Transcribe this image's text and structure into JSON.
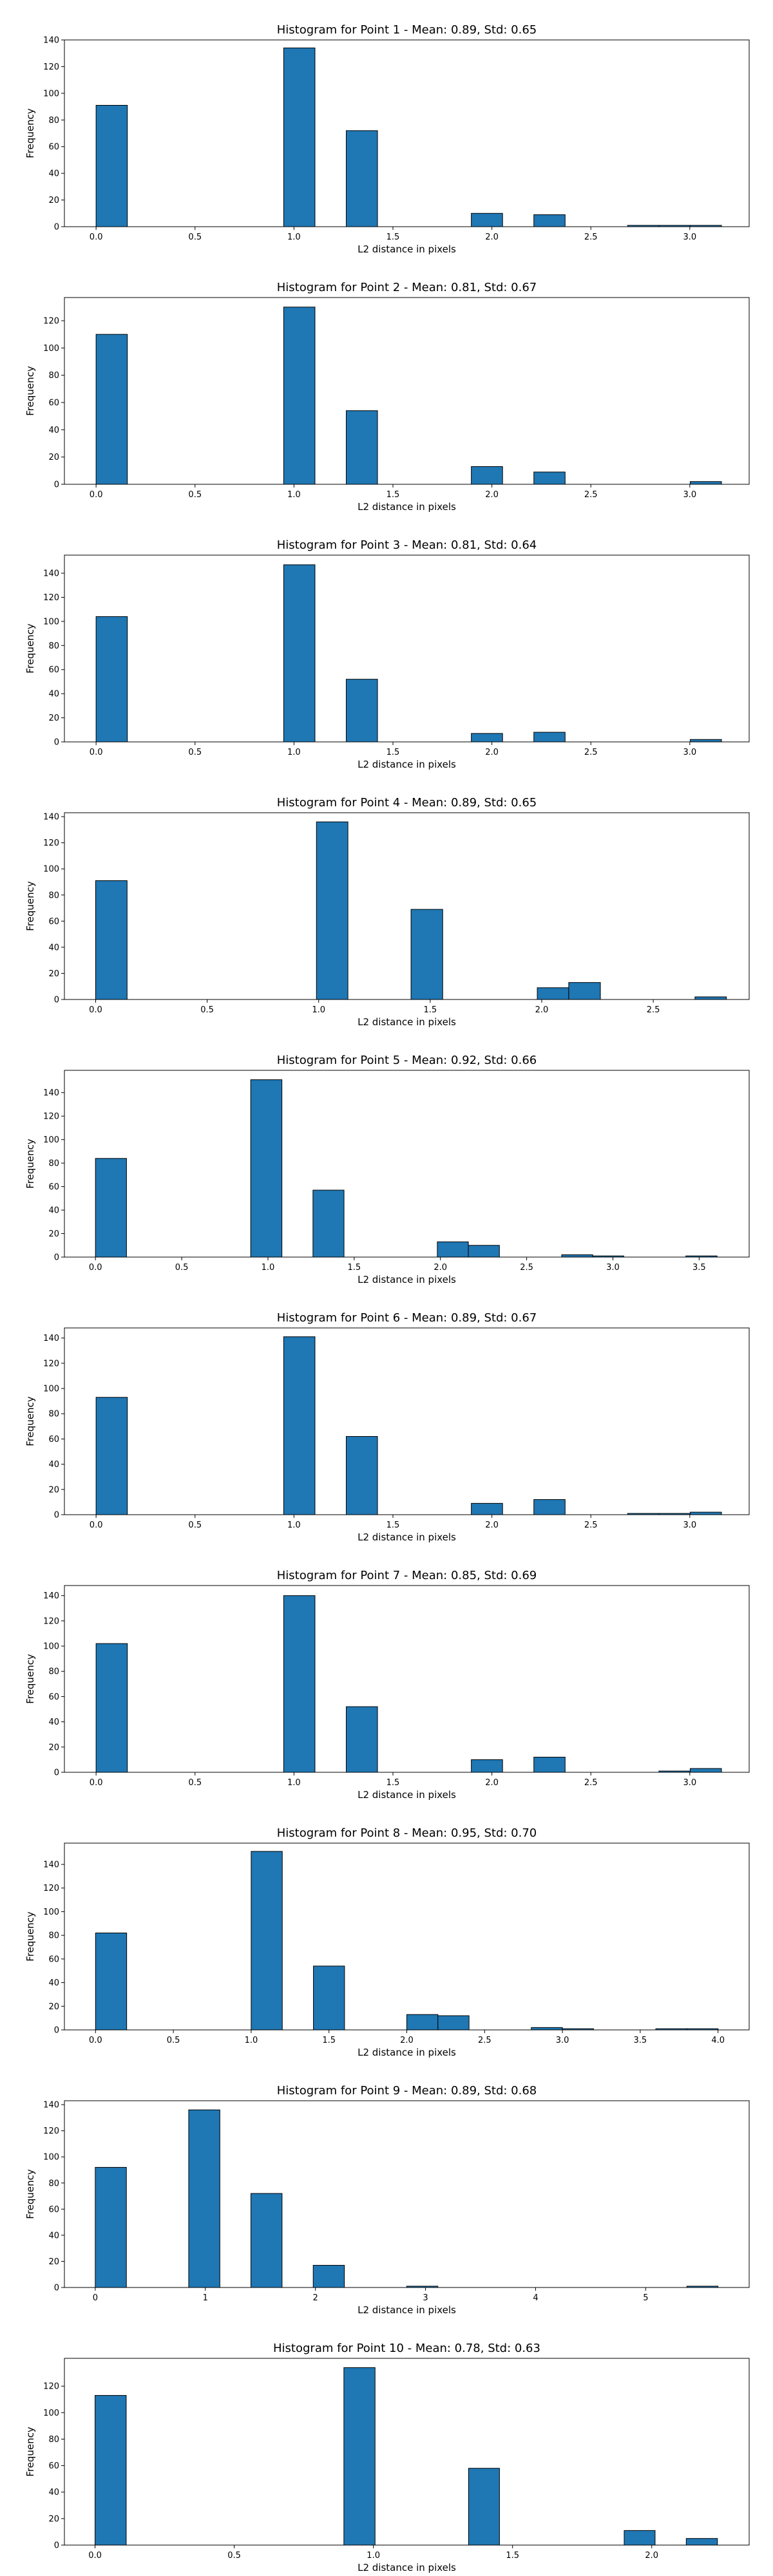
{
  "figure": {
    "background": "#ffffff"
  },
  "style": {
    "bar_fill": "#1f77b4",
    "bar_edge": "#000000",
    "axes_color": "#000000"
  },
  "chart_data": [
    {
      "type": "bar",
      "title": "Histogram for Point 1 - Mean: 0.89, Std: 0.65",
      "xlabel": "L2 distance in pixels",
      "ylabel": "Frequency",
      "xlim": [
        -0.16,
        3.3
      ],
      "ylim": [
        0,
        140
      ],
      "xticks": [
        0.0,
        0.5,
        1.0,
        1.5,
        2.0,
        2.5,
        3.0
      ],
      "xtick_labels": [
        "0.0",
        "0.5",
        "1.0",
        "1.5",
        "2.0",
        "2.5",
        "3.0"
      ],
      "yticks": [
        0,
        20,
        40,
        60,
        80,
        100,
        120,
        140
      ],
      "grid": false,
      "bins": [
        {
          "x0": 0.0,
          "x1": 0.158,
          "count": 91
        },
        {
          "x0": 0.948,
          "x1": 1.106,
          "count": 134
        },
        {
          "x0": 1.264,
          "x1": 1.422,
          "count": 72
        },
        {
          "x0": 1.896,
          "x1": 2.054,
          "count": 10
        },
        {
          "x0": 2.212,
          "x1": 2.37,
          "count": 9
        },
        {
          "x0": 2.686,
          "x1": 2.844,
          "count": 1
        },
        {
          "x0": 2.844,
          "x1": 3.002,
          "count": 1
        },
        {
          "x0": 3.002,
          "x1": 3.16,
          "count": 1
        }
      ]
    },
    {
      "type": "bar",
      "title": "Histogram for Point 2 - Mean: 0.81, Std: 0.67",
      "xlabel": "L2 distance in pixels",
      "ylabel": "Frequency",
      "xlim": [
        -0.16,
        3.3
      ],
      "ylim": [
        0,
        137
      ],
      "xticks": [
        0.0,
        0.5,
        1.0,
        1.5,
        2.0,
        2.5,
        3.0
      ],
      "xtick_labels": [
        "0.0",
        "0.5",
        "1.0",
        "1.5",
        "2.0",
        "2.5",
        "3.0"
      ],
      "yticks": [
        0,
        20,
        40,
        60,
        80,
        100,
        120
      ],
      "grid": false,
      "bins": [
        {
          "x0": 0.0,
          "x1": 0.158,
          "count": 110
        },
        {
          "x0": 0.948,
          "x1": 1.106,
          "count": 130
        },
        {
          "x0": 1.264,
          "x1": 1.422,
          "count": 54
        },
        {
          "x0": 1.896,
          "x1": 2.054,
          "count": 13
        },
        {
          "x0": 2.212,
          "x1": 2.37,
          "count": 9
        },
        {
          "x0": 3.002,
          "x1": 3.16,
          "count": 2
        }
      ]
    },
    {
      "type": "bar",
      "title": "Histogram for Point 3 - Mean: 0.81, Std: 0.64",
      "xlabel": "L2 distance in pixels",
      "ylabel": "Frequency",
      "xlim": [
        -0.16,
        3.3
      ],
      "ylim": [
        0,
        155
      ],
      "xticks": [
        0.0,
        0.5,
        1.0,
        1.5,
        2.0,
        2.5,
        3.0
      ],
      "xtick_labels": [
        "0.0",
        "0.5",
        "1.0",
        "1.5",
        "2.0",
        "2.5",
        "3.0"
      ],
      "yticks": [
        0,
        20,
        40,
        60,
        80,
        100,
        120,
        140
      ],
      "grid": false,
      "bins": [
        {
          "x0": 0.0,
          "x1": 0.158,
          "count": 104
        },
        {
          "x0": 0.948,
          "x1": 1.106,
          "count": 147
        },
        {
          "x0": 1.264,
          "x1": 1.422,
          "count": 52
        },
        {
          "x0": 1.896,
          "x1": 2.054,
          "count": 7
        },
        {
          "x0": 2.212,
          "x1": 2.37,
          "count": 8
        },
        {
          "x0": 3.002,
          "x1": 3.16,
          "count": 2
        }
      ]
    },
    {
      "type": "bar",
      "title": "Histogram for Point 4 - Mean: 0.89, Std: 0.65",
      "xlabel": "L2 distance in pixels",
      "ylabel": "Frequency",
      "xlim": [
        -0.14,
        2.93
      ],
      "ylim": [
        0,
        143
      ],
      "xticks": [
        0.0,
        0.5,
        1.0,
        1.5,
        2.0,
        2.5
      ],
      "xtick_labels": [
        "0.0",
        "0.5",
        "1.0",
        "1.5",
        "2.0",
        "2.5"
      ],
      "yticks": [
        0,
        20,
        40,
        60,
        80,
        100,
        120,
        140
      ],
      "grid": false,
      "bins": [
        {
          "x0": 0.0,
          "x1": 0.141,
          "count": 91
        },
        {
          "x0": 0.99,
          "x1": 1.131,
          "count": 136
        },
        {
          "x0": 1.414,
          "x1": 1.556,
          "count": 69
        },
        {
          "x0": 1.98,
          "x1": 2.121,
          "count": 9
        },
        {
          "x0": 2.121,
          "x1": 2.263,
          "count": 13
        },
        {
          "x0": 2.687,
          "x1": 2.828,
          "count": 2
        }
      ]
    },
    {
      "type": "bar",
      "title": "Histogram for Point 5 - Mean: 0.92, Std: 0.66",
      "xlabel": "L2 distance in pixels",
      "ylabel": "Frequency",
      "xlim": [
        -0.18,
        3.79
      ],
      "ylim": [
        0,
        159
      ],
      "xticks": [
        0.0,
        0.5,
        1.0,
        1.5,
        2.0,
        2.5,
        3.0,
        3.5
      ],
      "xtick_labels": [
        "0.0",
        "0.5",
        "1.0",
        "1.5",
        "2.0",
        "2.5",
        "3.0",
        "3.5"
      ],
      "yticks": [
        0,
        20,
        40,
        60,
        80,
        100,
        120,
        140
      ],
      "grid": false,
      "bins": [
        {
          "x0": 0.0,
          "x1": 0.18,
          "count": 84
        },
        {
          "x0": 0.9,
          "x1": 1.081,
          "count": 151
        },
        {
          "x0": 1.261,
          "x1": 1.441,
          "count": 57
        },
        {
          "x0": 1.982,
          "x1": 2.162,
          "count": 13
        },
        {
          "x0": 2.162,
          "x1": 2.342,
          "count": 10
        },
        {
          "x0": 2.703,
          "x1": 2.883,
          "count": 2
        },
        {
          "x0": 2.883,
          "x1": 3.063,
          "count": 1
        },
        {
          "x0": 3.423,
          "x1": 3.604,
          "count": 1
        }
      ]
    },
    {
      "type": "bar",
      "title": "Histogram for Point 6 - Mean: 0.89, Std: 0.67",
      "xlabel": "L2 distance in pixels",
      "ylabel": "Frequency",
      "xlim": [
        -0.16,
        3.3
      ],
      "ylim": [
        0,
        148
      ],
      "xticks": [
        0.0,
        0.5,
        1.0,
        1.5,
        2.0,
        2.5,
        3.0
      ],
      "xtick_labels": [
        "0.0",
        "0.5",
        "1.0",
        "1.5",
        "2.0",
        "2.5",
        "3.0"
      ],
      "yticks": [
        0,
        20,
        40,
        60,
        80,
        100,
        120,
        140
      ],
      "grid": false,
      "bins": [
        {
          "x0": 0.0,
          "x1": 0.158,
          "count": 93
        },
        {
          "x0": 0.948,
          "x1": 1.106,
          "count": 141
        },
        {
          "x0": 1.264,
          "x1": 1.422,
          "count": 62
        },
        {
          "x0": 1.896,
          "x1": 2.054,
          "count": 9
        },
        {
          "x0": 2.212,
          "x1": 2.37,
          "count": 12
        },
        {
          "x0": 2.686,
          "x1": 2.844,
          "count": 1
        },
        {
          "x0": 2.844,
          "x1": 3.002,
          "count": 1
        },
        {
          "x0": 3.002,
          "x1": 3.16,
          "count": 2
        }
      ]
    },
    {
      "type": "bar",
      "title": "Histogram for Point 7 - Mean: 0.85, Std: 0.69",
      "xlabel": "L2 distance in pixels",
      "ylabel": "Frequency",
      "xlim": [
        -0.16,
        3.3
      ],
      "ylim": [
        0,
        148
      ],
      "xticks": [
        0.0,
        0.5,
        1.0,
        1.5,
        2.0,
        2.5,
        3.0
      ],
      "xtick_labels": [
        "0.0",
        "0.5",
        "1.0",
        "1.5",
        "2.0",
        "2.5",
        "3.0"
      ],
      "yticks": [
        0,
        20,
        40,
        60,
        80,
        100,
        120,
        140
      ],
      "grid": false,
      "bins": [
        {
          "x0": 0.0,
          "x1": 0.158,
          "count": 102
        },
        {
          "x0": 0.948,
          "x1": 1.106,
          "count": 140
        },
        {
          "x0": 1.264,
          "x1": 1.422,
          "count": 52
        },
        {
          "x0": 1.896,
          "x1": 2.054,
          "count": 10
        },
        {
          "x0": 2.212,
          "x1": 2.37,
          "count": 12
        },
        {
          "x0": 2.844,
          "x1": 3.002,
          "count": 1
        },
        {
          "x0": 3.002,
          "x1": 3.16,
          "count": 3
        }
      ]
    },
    {
      "type": "bar",
      "title": "Histogram for Point 8 - Mean: 0.95, Std: 0.70",
      "xlabel": "L2 distance in pixels",
      "ylabel": "Frequency",
      "xlim": [
        -0.2,
        4.2
      ],
      "ylim": [
        0,
        158
      ],
      "xticks": [
        0.0,
        0.5,
        1.0,
        1.5,
        2.0,
        2.5,
        3.0,
        3.5,
        4.0
      ],
      "xtick_labels": [
        "0.0",
        "0.5",
        "1.0",
        "1.5",
        "2.0",
        "2.5",
        "3.0",
        "3.5",
        "4.0"
      ],
      "yticks": [
        0,
        20,
        40,
        60,
        80,
        100,
        120,
        140
      ],
      "grid": false,
      "bins": [
        {
          "x0": 0.0,
          "x1": 0.2,
          "count": 82
        },
        {
          "x0": 1.0,
          "x1": 1.2,
          "count": 151
        },
        {
          "x0": 1.4,
          "x1": 1.6,
          "count": 54
        },
        {
          "x0": 2.0,
          "x1": 2.2,
          "count": 13
        },
        {
          "x0": 2.2,
          "x1": 2.4,
          "count": 12
        },
        {
          "x0": 2.8,
          "x1": 3.0,
          "count": 2
        },
        {
          "x0": 3.0,
          "x1": 3.2,
          "count": 1
        },
        {
          "x0": 3.6,
          "x1": 3.8,
          "count": 1
        },
        {
          "x0": 3.8,
          "x1": 4.0,
          "count": 1
        }
      ]
    },
    {
      "type": "bar",
      "title": "Histogram for Point 9 - Mean: 0.89, Std: 0.68",
      "xlabel": "L2 distance in pixels",
      "ylabel": "Frequency",
      "xlim": [
        -0.28,
        5.94
      ],
      "ylim": [
        0,
        143
      ],
      "xticks": [
        0,
        1,
        2,
        3,
        4,
        5
      ],
      "xtick_labels": [
        "0",
        "1",
        "2",
        "3",
        "4",
        "5"
      ],
      "yticks": [
        0,
        20,
        40,
        60,
        80,
        100,
        120,
        140
      ],
      "grid": false,
      "bins": [
        {
          "x0": 0.0,
          "x1": 0.283,
          "count": 92
        },
        {
          "x0": 0.849,
          "x1": 1.132,
          "count": 136
        },
        {
          "x0": 1.414,
          "x1": 1.697,
          "count": 72
        },
        {
          "x0": 1.98,
          "x1": 2.263,
          "count": 17
        },
        {
          "x0": 2.829,
          "x1": 3.112,
          "count": 1
        },
        {
          "x0": 5.374,
          "x1": 5.657,
          "count": 1
        }
      ]
    },
    {
      "type": "bar",
      "title": "Histogram for Point 10 - Mean: 0.78, Std: 0.63",
      "xlabel": "L2 distance in pixels",
      "ylabel": "Frequency",
      "xlim": [
        -0.11,
        2.35
      ],
      "ylim": [
        0,
        141
      ],
      "xticks": [
        0.0,
        0.5,
        1.0,
        1.5,
        2.0
      ],
      "xtick_labels": [
        "0.0",
        "0.5",
        "1.0",
        "1.5",
        "2.0"
      ],
      "yticks": [
        0,
        20,
        40,
        60,
        80,
        100,
        120
      ],
      "grid": false,
      "bins": [
        {
          "x0": 0.0,
          "x1": 0.112,
          "count": 113
        },
        {
          "x0": 0.894,
          "x1": 1.006,
          "count": 134
        },
        {
          "x0": 1.342,
          "x1": 1.453,
          "count": 58
        },
        {
          "x0": 1.901,
          "x1": 2.012,
          "count": 11
        },
        {
          "x0": 2.124,
          "x1": 2.236,
          "count": 5
        }
      ]
    }
  ]
}
